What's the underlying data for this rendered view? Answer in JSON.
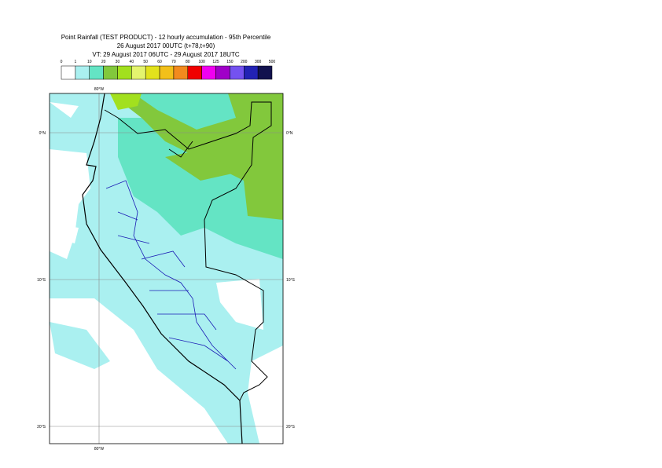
{
  "header": {
    "title": "Point Rainfall (TEST PRODUCT) - 12 hourly accumulation - 95th Percentile",
    "base_time": "26 August 2017 00UTC (t+78,t+90)",
    "valid_time": "VT: 29 August 2017 06UTC - 29 August 2017 18UTC"
  },
  "colorbar": {
    "labels": [
      "0",
      "1",
      "10",
      "20",
      "30",
      "40",
      "50",
      "60",
      "70",
      "80",
      "100",
      "125",
      "150",
      "200",
      "300",
      "500"
    ],
    "colors": [
      "#ffffff",
      "#aaf0f0",
      "#64e4c4",
      "#82c83c",
      "#a2e01e",
      "#e4f46e",
      "#e2e21c",
      "#f2c01a",
      "#f28a1e",
      "#f00000",
      "#f000f0",
      "#a000c8",
      "#7452f0",
      "#2222b4",
      "#12124e"
    ]
  },
  "map": {
    "lat_labels": [
      "0°N",
      "10°S",
      "20°S"
    ],
    "lon_labels": [
      "80°W"
    ]
  }
}
